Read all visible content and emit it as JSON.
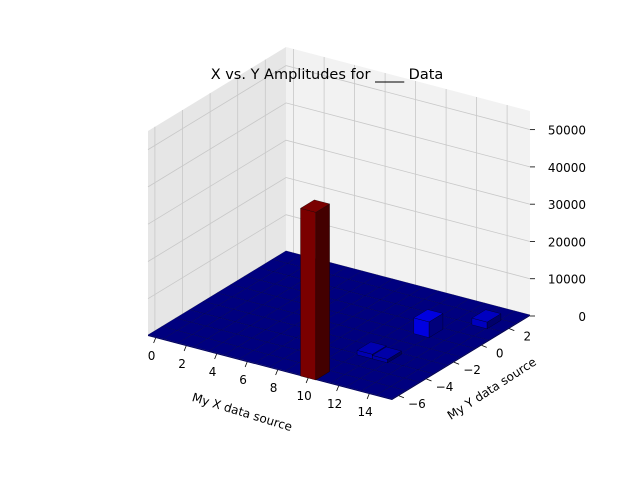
{
  "chart_data": {
    "type": "bar3d",
    "title": "X vs. Y Amplitudes for ____ Data",
    "xlabel": "My X data source",
    "ylabel": "My Y data source",
    "zlabel": "",
    "xlim": [
      -0.5,
      15.5
    ],
    "ylim": [
      -6.5,
      3.5
    ],
    "zlim": [
      0,
      55000
    ],
    "x_ticks": [
      0,
      2,
      4,
      6,
      8,
      10,
      12,
      14
    ],
    "y_ticks": [
      -6,
      -4,
      -2,
      0,
      2
    ],
    "z_ticks": [
      0,
      10000,
      20000,
      30000,
      40000,
      50000
    ],
    "x_tick_labels": [
      "0",
      "2",
      "4",
      "6",
      "8",
      "10",
      "12",
      "14"
    ],
    "y_tick_labels": [
      "−6",
      "−4",
      "−2",
      "0",
      "2"
    ],
    "z_tick_labels": [
      "0",
      "10000",
      "20000",
      "30000",
      "40000",
      "50000"
    ],
    "x_bins": 16,
    "y_bins": 10,
    "baseline_value": 300,
    "bars": [
      {
        "x": 10,
        "y": -6,
        "value": 45000,
        "color": "#7a0000"
      },
      {
        "x": 12,
        "y": 0,
        "value": 4200,
        "color": "#0000e0"
      },
      {
        "x": 14,
        "y": 2,
        "value": 1800,
        "color": "#0000c0"
      },
      {
        "x": 11,
        "y": -3,
        "value": 1200,
        "color": "#0000b0"
      },
      {
        "x": 12,
        "y": -3,
        "value": 900,
        "color": "#0000a8"
      }
    ],
    "colors": {
      "low": "#00007f",
      "high": "#7f0000",
      "pane": "#f2f2f2",
      "grid": "#c8c8c8"
    }
  }
}
